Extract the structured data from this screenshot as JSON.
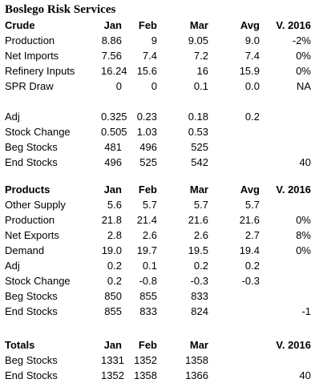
{
  "title": "Boslego Risk Services",
  "sections": [
    {
      "header": [
        "Crude",
        "Jan",
        "Feb",
        "Mar",
        "Avg",
        "V. 2016"
      ],
      "rows": [
        [
          "Production",
          "8.86",
          "9",
          "9.05",
          "9.0",
          "-2%"
        ],
        [
          "Net Imports",
          "7.56",
          "7.4",
          "7.2",
          "7.4",
          "0%"
        ],
        [
          "Refinery Inputs",
          "16.24",
          "15.6",
          "16",
          "15.9",
          "0%"
        ],
        [
          "SPR Draw",
          "0",
          "0",
          "0.1",
          "0.0",
          "NA"
        ],
        [
          "",
          "",
          "",
          "",
          "",
          ""
        ],
        [
          "Adj",
          "0.325",
          "0.23",
          "0.18",
          "0.2",
          ""
        ],
        [
          "Stock Change",
          "0.505",
          "1.03",
          "0.53",
          "",
          ""
        ],
        [
          "Beg Stocks",
          "481",
          "496",
          "525",
          "",
          ""
        ],
        [
          "End Stocks",
          "496",
          "525",
          "542",
          "",
          "40"
        ]
      ]
    },
    {
      "header": [
        "Products",
        "Jan",
        "Feb",
        "Mar",
        "Avg",
        "V. 2016"
      ],
      "rows": [
        [
          "Other Supply",
          "5.6",
          "5.7",
          "5.7",
          "5.7",
          ""
        ],
        [
          "Production",
          "21.8",
          "21.4",
          "21.6",
          "21.6",
          "0%"
        ],
        [
          "Net Exports",
          "2.8",
          "2.6",
          "2.6",
          "2.7",
          "8%"
        ],
        [
          "Demand",
          "19.0",
          "19.7",
          "19.5",
          "19.4",
          "0%"
        ],
        [
          "Adj",
          "0.2",
          "0.1",
          "0.2",
          "0.2",
          ""
        ],
        [
          "Stock Change",
          "0.2",
          "-0.8",
          "-0.3",
          "-0.3",
          ""
        ],
        [
          "Beg Stocks",
          "850",
          "855",
          "833",
          "",
          ""
        ],
        [
          "End Stocks",
          "855",
          "833",
          "824",
          "",
          "-1"
        ]
      ]
    },
    {
      "header": [
        "Totals",
        "Jan",
        "Feb",
        "Mar",
        "",
        "V. 2016"
      ],
      "rows": [
        [
          "Beg Stocks",
          "1331",
          "1352",
          "1358",
          "",
          ""
        ],
        [
          "End Stocks",
          "1352",
          "1358",
          "1366",
          "",
          "40"
        ]
      ]
    }
  ]
}
